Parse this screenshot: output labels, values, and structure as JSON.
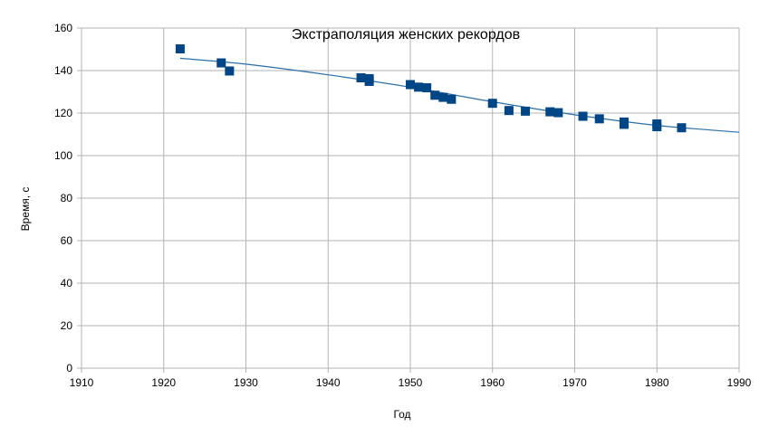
{
  "chart_data": {
    "type": "scatter",
    "title": "Экстраполяция женских рекордов",
    "xlabel": "Год",
    "ylabel": "Время, с",
    "xlim": [
      1910,
      1990
    ],
    "ylim": [
      0,
      160
    ],
    "xticks": [
      1910,
      1920,
      1930,
      1940,
      1950,
      1960,
      1970,
      1980,
      1990
    ],
    "yticks": [
      0,
      20,
      40,
      60,
      80,
      100,
      120,
      140,
      160
    ],
    "grid": true,
    "legend": "none",
    "colors": {
      "points": "#004586",
      "trend": "#2a6ea8",
      "grid": "#b3b3b3"
    },
    "points": [
      [
        1922,
        150.2
      ],
      [
        1927,
        143.6
      ],
      [
        1928,
        139.8
      ],
      [
        1944,
        136.6
      ],
      [
        1945,
        136.2
      ],
      [
        1945,
        134.9
      ],
      [
        1950,
        133.4
      ],
      [
        1951,
        132.2
      ],
      [
        1952,
        131.9
      ],
      [
        1953,
        128.4
      ],
      [
        1954,
        127.4
      ],
      [
        1955,
        126.5
      ],
      [
        1960,
        124.6
      ],
      [
        1962,
        121.2
      ],
      [
        1964,
        120.9
      ],
      [
        1967,
        120.6
      ],
      [
        1968,
        120.2
      ],
      [
        1971,
        118.5
      ],
      [
        1973,
        117.3
      ],
      [
        1976,
        115.8
      ],
      [
        1976,
        114.7
      ],
      [
        1980,
        114.9
      ],
      [
        1980,
        113.6
      ],
      [
        1983,
        113.1
      ]
    ],
    "trendline": {
      "x": [
        1922,
        1930,
        1940,
        1950,
        1960,
        1970,
        1980,
        1990
      ],
      "y": [
        145.8,
        143.0,
        138.0,
        132.2,
        125.3,
        119.2,
        114.2,
        111.0
      ]
    }
  }
}
